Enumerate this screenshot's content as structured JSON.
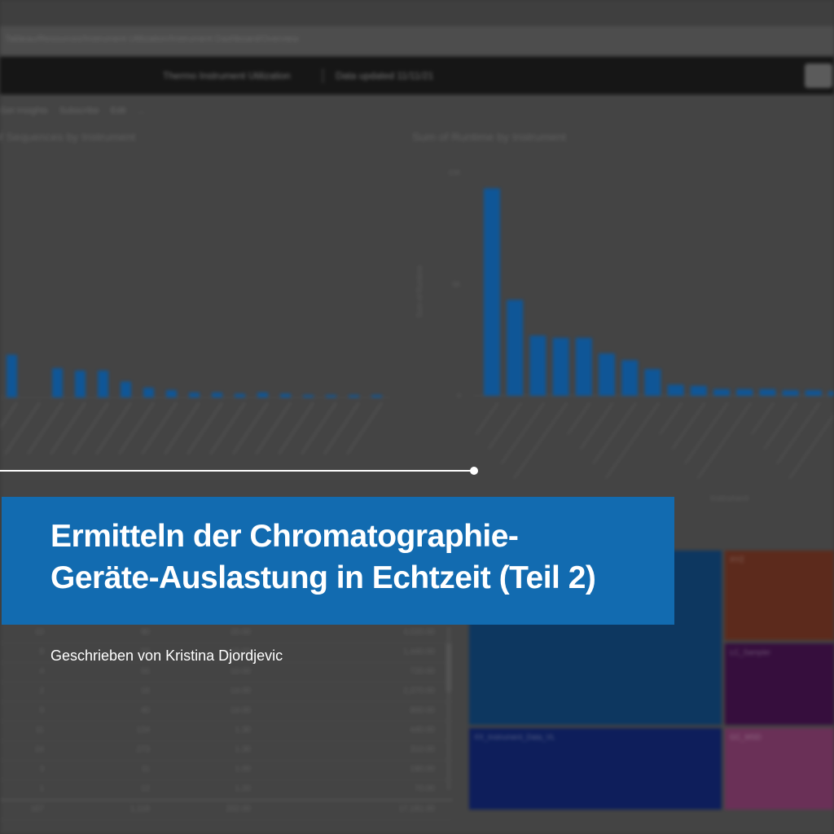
{
  "background": {
    "url_text": "Tableau/Resources/Instrument Utilization/Instrument Dashboard/Overview",
    "header_title": "Thermo Instrument Utilization",
    "header_subtitle": "Data updated 11/11/21",
    "toolbar": [
      {
        "label": "Get Insights",
        "icon": "lightbulb-icon"
      },
      {
        "label": "Subscribe",
        "icon": "mail-icon"
      },
      {
        "label": "Edit",
        "icon": "pencil-icon"
      },
      {
        "label": "...",
        "icon": "more-icon"
      }
    ],
    "left_chart_title": "of Sequences by Instrument",
    "right_chart_title": "Sum of Runtime by Instrument",
    "instrument_label": "Instrument",
    "table_rows": [
      [
        "10",
        "90",
        "20.00",
        "4,020.00"
      ],
      [
        "8",
        "58",
        "10.00",
        "1,440.00"
      ],
      [
        "4",
        "55",
        "10.00",
        "720.00"
      ],
      [
        "2",
        "16",
        "14.00",
        "2,370.00"
      ],
      [
        "9",
        "40",
        "14.00",
        "800.00"
      ],
      [
        "11",
        "124",
        "1.30",
        "440.00"
      ],
      [
        "24",
        "273",
        "1.30",
        "310.00"
      ],
      [
        "3",
        "11",
        "1.00",
        "180.00"
      ],
      [
        "1",
        "12",
        "1.20",
        "70.00"
      ]
    ],
    "table_total": [
      "167",
      "1,118",
      "202.00",
      "17,181.00"
    ],
    "treemap_cells": [
      {
        "label": "",
        "color": "#0a3d70"
      },
      {
        "label": "XYZ",
        "color": "#6b2e1d"
      },
      {
        "label": "LC_Sampler",
        "color": "#3c0c45"
      },
      {
        "label": "XX_Instrument_Data_VL",
        "color": "#0b1f69"
      },
      {
        "label": "GC_MSD",
        "color": "#7c3565"
      }
    ],
    "colors": {
      "bar": "#0d63b2",
      "banner": "#126bb0",
      "header": "#151515"
    }
  },
  "chart_data": [
    {
      "type": "bar",
      "title": "of Sequences by Instrument",
      "values": [
        3.5,
        0,
        2.4,
        2.2,
        2.2,
        1.3,
        0.8,
        0.6,
        0.4,
        0.4,
        0.3,
        0.4,
        0.3,
        0.2,
        0.2,
        0.2,
        0.2
      ],
      "ylim": [
        0,
        20
      ]
    },
    {
      "type": "bar",
      "title": "Sum of Runtime by Instrument",
      "ylabel": "Sum of Runtime",
      "yticks": [
        "10K",
        "5K",
        "0"
      ],
      "values": [
        9300,
        4300,
        2700,
        2600,
        2600,
        1900,
        1600,
        1200,
        500,
        450,
        300,
        300,
        300,
        250,
        250,
        200
      ],
      "ylim": [
        0,
        10000
      ]
    }
  ],
  "overlay": {
    "title_line1": "Ermitteln der Chromatographie-",
    "title_line2": "Geräte-Auslastung in Echtzeit (Teil 2)",
    "byline": "Geschrieben von Kristina Djordjevic"
  }
}
